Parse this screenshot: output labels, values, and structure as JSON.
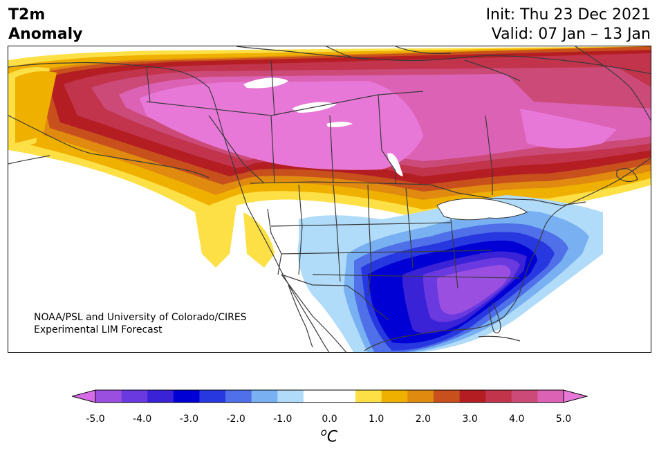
{
  "title": {
    "line1": "T2m",
    "line2": "Anomaly"
  },
  "info": {
    "init": "Init: Thu 23 Dec 2021",
    "valid": "Valid: 07 Jan – 13 Jan"
  },
  "credit": {
    "line1": "NOAA/PSL and University of Colorado/CIRES",
    "line2": "Experimental LIM Forecast"
  },
  "colorbar": {
    "unit_base": "C",
    "unit_sup": "o",
    "ticks": [
      "-5.0",
      "-4.0",
      "-3.0",
      "-2.0",
      "-1.0",
      "0.0",
      "1.0",
      "2.0",
      "3.0",
      "4.0",
      "5.0"
    ],
    "colors": [
      "#9a4fe0",
      "#6a3ae0",
      "#3a22d6",
      "#0000d4",
      "#2838e0",
      "#4f70e8",
      "#78b0f2",
      "#b0dcfa",
      "#ffffff",
      "#ffffff",
      "#fce046",
      "#f0b000",
      "#e08a10",
      "#c8501c",
      "#b41e22",
      "#c2334c",
      "#cc4a78",
      "#dc62b6"
    ],
    "under_color": "#d86ce8",
    "over_color": "#e878d8"
  },
  "map": {
    "land_color": "#ffffff",
    "border_color": "#3a3a3a"
  }
}
